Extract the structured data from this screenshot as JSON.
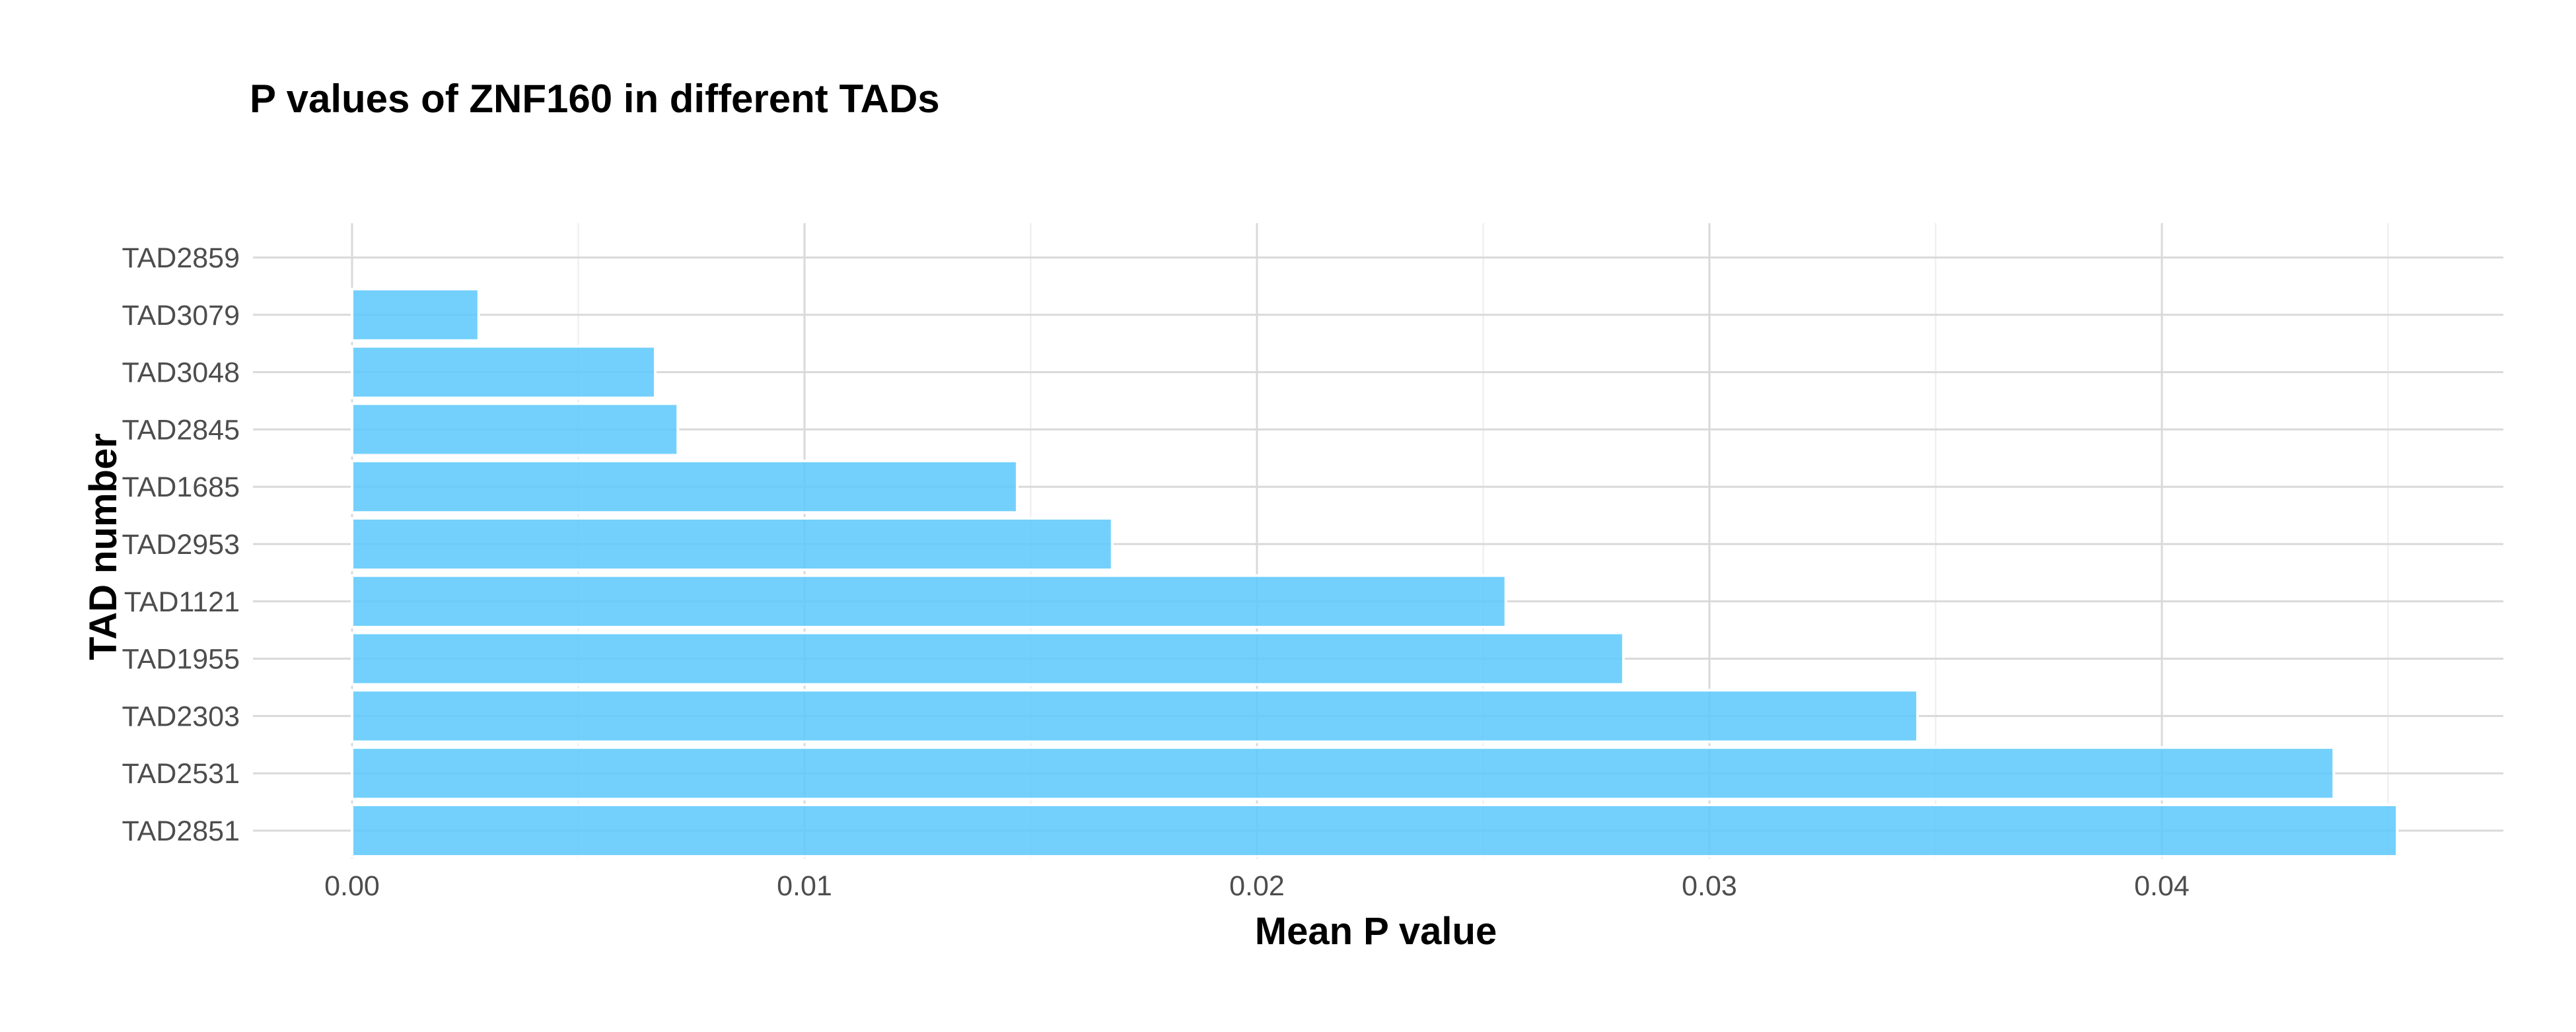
{
  "chart_data": {
    "type": "bar",
    "orientation": "horizontal",
    "title": "P values of ZNF160 in different TADs",
    "xlabel": "Mean P value",
    "ylabel": "TAD number",
    "categories": [
      "TAD2851",
      "TAD2531",
      "TAD2303",
      "TAD1955",
      "TAD1121",
      "TAD2953",
      "TAD1685",
      "TAD2845",
      "TAD3048",
      "TAD3079",
      "TAD2859"
    ],
    "values": [
      0.0452,
      0.0438,
      0.0346,
      0.0281,
      0.0255,
      0.0168,
      0.0147,
      0.0072,
      0.0067,
      0.0028,
      0.0
    ],
    "xlim": [
      0,
      0.0475
    ],
    "xticks": [
      0.0,
      0.01,
      0.02,
      0.03,
      0.04
    ],
    "xtick_labels": [
      "0.00",
      "0.01",
      "0.02",
      "0.03",
      "0.04"
    ],
    "grid": true,
    "bar_color": "#5bc8fc",
    "legend": "none"
  }
}
